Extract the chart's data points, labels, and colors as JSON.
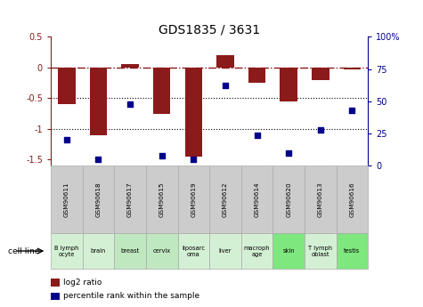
{
  "title": "GDS1835 / 3631",
  "samples": [
    "GSM90611",
    "GSM90618",
    "GSM90617",
    "GSM90615",
    "GSM90619",
    "GSM90612",
    "GSM90614",
    "GSM90620",
    "GSM90613",
    "GSM90616"
  ],
  "cell_lines": [
    "B lymph\nocyte",
    "brain",
    "breast",
    "cervix",
    "liposarc\noma",
    "liver",
    "macroph\nage",
    "skin",
    "T lymph\noblast",
    "testis"
  ],
  "cell_colors": [
    "#d4f0d4",
    "#d4f0d4",
    "#c0e8c0",
    "#c0e8c0",
    "#d4f0d4",
    "#d4f0d4",
    "#d4f0d4",
    "#7ee87e",
    "#d4f0d4",
    "#7ee87e"
  ],
  "log2_ratio": [
    -0.6,
    -1.1,
    0.05,
    -0.75,
    -1.45,
    0.2,
    -0.25,
    -0.55,
    -0.2,
    -0.03
  ],
  "percentile_rank": [
    20,
    5,
    48,
    8,
    5,
    62,
    24,
    10,
    28,
    43
  ],
  "ylim_left": [
    -1.6,
    0.5
  ],
  "ylim_right": [
    0,
    100
  ],
  "bar_color": "#8B1A1A",
  "dot_color": "#00008B",
  "dotted_lines": [
    -0.5,
    -1.0
  ],
  "left_yticks": [
    0.5,
    0.0,
    -0.5,
    -1.0,
    -1.5
  ],
  "left_yticklabels": [
    "0.5",
    "0",
    "-0.5",
    "-1",
    "-1.5"
  ],
  "right_ticks": [
    0,
    25,
    50,
    75,
    100
  ],
  "right_tick_labels": [
    "0",
    "25",
    "50",
    "75",
    "100%"
  ],
  "legend_bar_label": "log2 ratio",
  "legend_dot_label": "percentile rank within the sample",
  "cell_line_label": "cell line",
  "bg_color_plot": "#ffffff",
  "bg_color_fig": "#ffffff",
  "gsm_box_color": "#cccccc"
}
